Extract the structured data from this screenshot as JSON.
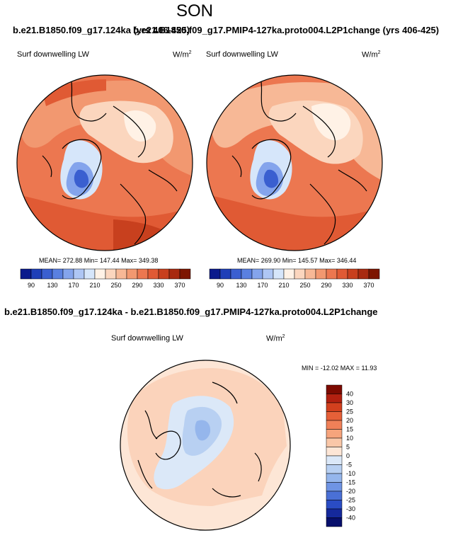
{
  "header": {
    "season": "SON",
    "case_a_line": "b.e21.B1850.f09_g17.124ka (yrs 406-425)",
    "case_b_line": "b.e21.B1850.f09_g17.PMIP4-127ka.proto004.L2P1change (yrs 406-425)",
    "difference_title": "b.e21.B1850.f09_g17.124ka - b.e21.B1850.f09_g17.PMIP4-127ka.proto004.L2P1change"
  },
  "panels": {
    "left": {
      "variable": "Surf downwelling LW",
      "units": "W/m",
      "units_exp": "2",
      "stats": "MEAN= 272.88  Min= 147.44  Max= 349.38"
    },
    "right": {
      "variable": "Surf downwelling LW",
      "units": "W/m",
      "units_exp": "2",
      "stats": "MEAN= 269.90  Min= 145.57  Max= 346.44"
    },
    "diff": {
      "variable": "Surf downwelling LW",
      "units": "W/m",
      "units_exp": "2",
      "stats": "MIN = -12.02 MAX =  11.93"
    }
  },
  "chart_data": [
    {
      "type": "heatmap",
      "title": "Surf downwelling LW",
      "units": "W/m2",
      "projection": "polar stereographic (North Pole)",
      "mean": 272.88,
      "min": 147.44,
      "max": 349.38,
      "colorbar_ticks": [
        90,
        130,
        170,
        210,
        250,
        290,
        330,
        370
      ],
      "colorbar_colors": [
        "#0a1a8c",
        "#1f3fb8",
        "#3a5fd0",
        "#5a80e0",
        "#84a4ec",
        "#aec6f4",
        "#d6e6fa",
        "#fff2e6",
        "#fbd6be",
        "#f7b896",
        "#f29870",
        "#ec7750",
        "#e05a34",
        "#c8401e",
        "#a82a10",
        "#7d1500"
      ]
    },
    {
      "type": "heatmap",
      "title": "Surf downwelling LW",
      "units": "W/m2",
      "projection": "polar stereographic (North Pole)",
      "mean": 269.9,
      "min": 145.57,
      "max": 346.44,
      "colorbar_ticks": [
        90,
        130,
        170,
        210,
        250,
        290,
        330,
        370
      ],
      "colorbar_colors": [
        "#0a1a8c",
        "#1f3fb8",
        "#3a5fd0",
        "#5a80e0",
        "#84a4ec",
        "#aec6f4",
        "#d6e6fa",
        "#fff2e6",
        "#fbd6be",
        "#f7b896",
        "#f29870",
        "#ec7750",
        "#e05a34",
        "#c8401e",
        "#a82a10",
        "#7d1500"
      ]
    },
    {
      "type": "heatmap",
      "title": "Surf downwelling LW",
      "units": "W/m2",
      "projection": "polar stereographic (North Pole)",
      "min": -12.02,
      "max": 11.93,
      "colorbar_ticks": [
        40,
        30,
        25,
        20,
        15,
        10,
        5,
        0,
        -5,
        -10,
        -15,
        -20,
        -25,
        -30,
        -40
      ],
      "colorbar_colors": [
        "#7d0a00",
        "#b22010",
        "#d2401e",
        "#e66038",
        "#f08058",
        "#f6a47c",
        "#fac7a8",
        "#fde6d6",
        "#dbe8f8",
        "#b8d0f2",
        "#95b6ec",
        "#6f94e4",
        "#4a70d6",
        "#2a4cc4",
        "#15299c",
        "#070f6c"
      ]
    }
  ]
}
